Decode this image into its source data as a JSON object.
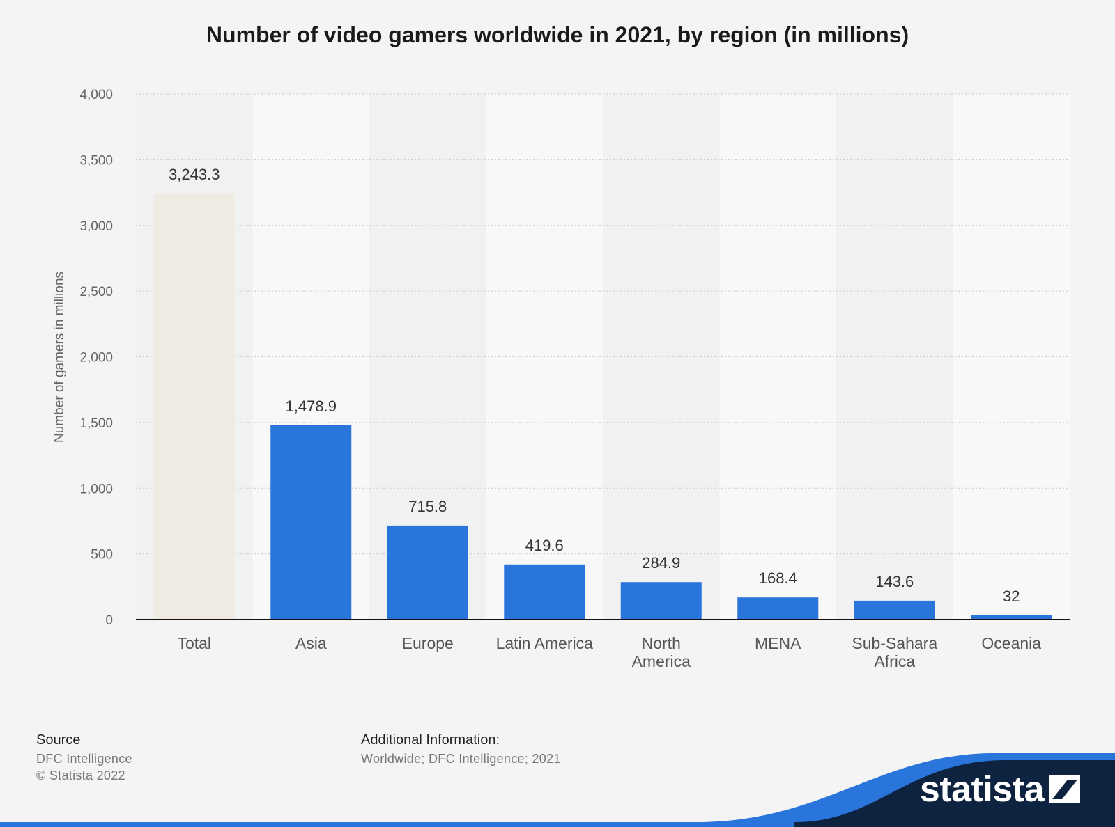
{
  "chart_data": {
    "type": "bar",
    "title": "Number of video gamers worldwide in 2021, by region (in millions)",
    "xlabel": "",
    "ylabel": "Number of gamers in millions",
    "ylim": [
      0,
      4000
    ],
    "yticks": [
      0,
      500,
      1000,
      1500,
      2000,
      2500,
      3000,
      3500,
      4000
    ],
    "ytick_labels": [
      "0",
      "500",
      "1,000",
      "1,500",
      "2,000",
      "2,500",
      "3,000",
      "3,500",
      "4,000"
    ],
    "categories": [
      [
        "Total"
      ],
      [
        "Asia"
      ],
      [
        "Europe"
      ],
      [
        "Latin America"
      ],
      [
        "North",
        "America"
      ],
      [
        "MENA"
      ],
      [
        "Sub-Sahara",
        "Africa"
      ],
      [
        "Oceania"
      ]
    ],
    "values": [
      3243.3,
      1478.9,
      715.8,
      419.6,
      284.9,
      168.4,
      143.6,
      32
    ],
    "value_labels": [
      "3,243.3",
      "1,478.9",
      "715.8",
      "419.6",
      "284.9",
      "168.4",
      "143.6",
      "32"
    ],
    "bar_colors": [
      "#efebe3",
      "#2a75dc",
      "#2a75dc",
      "#2a75dc",
      "#2a75dc",
      "#2a75dc",
      "#2a75dc",
      "#2a75dc"
    ],
    "grid": true,
    "legend": "none"
  },
  "footer": {
    "source_heading": "Source",
    "source_name": "DFC Intelligence",
    "copyright": "© Statista 2022",
    "additional_heading": "Additional Information:",
    "additional_text": "Worldwide; DFC Intelligence; 2021"
  },
  "branding": {
    "logo_text": "statista",
    "logo_icon": "statista-mark-icon",
    "dark_color": "#0d2340",
    "accent_color": "#2a75dc"
  }
}
